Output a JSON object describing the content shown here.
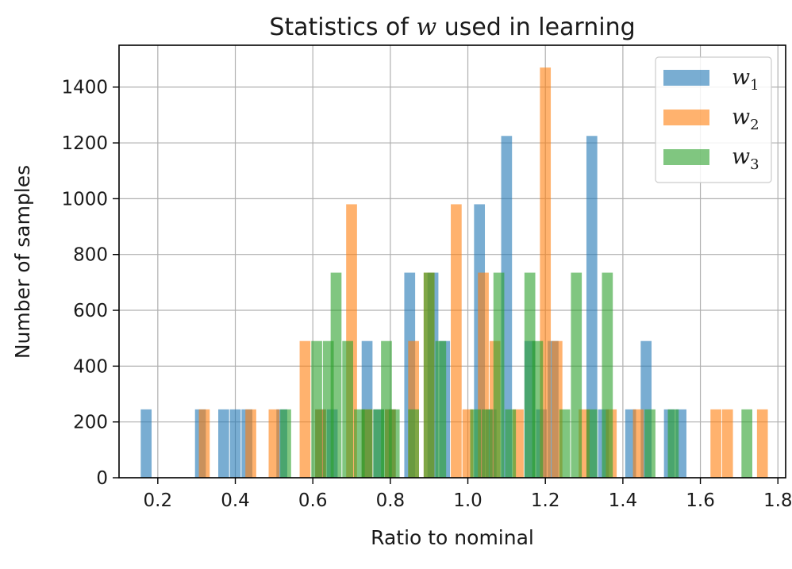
{
  "chart_data": {
    "type": "bar",
    "title_pre": "Statistics of ",
    "title_var": "w",
    "title_post": " used in learning",
    "xlabel": "Ratio to nominal",
    "ylabel": "Number of samples",
    "xlim": [
      0.1,
      1.82
    ],
    "ylim": [
      0,
      1550
    ],
    "xticks": [
      "0.2",
      "0.4",
      "0.6",
      "0.8",
      "1.0",
      "1.2",
      "1.4",
      "1.6",
      "1.8"
    ],
    "yticks": [
      "0",
      "200",
      "400",
      "600",
      "800",
      "1000",
      "1200",
      "1400"
    ],
    "grid": true,
    "legend_position": "top-right",
    "bar_width": 0.028,
    "series": [
      {
        "name": "w",
        "subscript": "1",
        "color": "#1f77b4",
        "bars": [
          {
            "x": 0.17,
            "y": 245
          },
          {
            "x": 0.31,
            "y": 245
          },
          {
            "x": 0.37,
            "y": 245
          },
          {
            "x": 0.4,
            "y": 245
          },
          {
            "x": 0.43,
            "y": 245
          },
          {
            "x": 0.52,
            "y": 245
          },
          {
            "x": 0.62,
            "y": 245
          },
          {
            "x": 0.65,
            "y": 245
          },
          {
            "x": 0.74,
            "y": 490
          },
          {
            "x": 0.77,
            "y": 245
          },
          {
            "x": 0.8,
            "y": 245
          },
          {
            "x": 0.85,
            "y": 735
          },
          {
            "x": 0.91,
            "y": 735
          },
          {
            "x": 0.94,
            "y": 490
          },
          {
            "x": 1.03,
            "y": 980
          },
          {
            "x": 1.06,
            "y": 245
          },
          {
            "x": 1.1,
            "y": 1225
          },
          {
            "x": 1.16,
            "y": 490
          },
          {
            "x": 1.19,
            "y": 245
          },
          {
            "x": 1.22,
            "y": 490
          },
          {
            "x": 1.32,
            "y": 1225
          },
          {
            "x": 1.35,
            "y": 245
          },
          {
            "x": 1.42,
            "y": 245
          },
          {
            "x": 1.46,
            "y": 490
          },
          {
            "x": 1.52,
            "y": 245
          },
          {
            "x": 1.55,
            "y": 245
          }
        ]
      },
      {
        "name": "w",
        "subscript": "2",
        "color": "#ff7f0e",
        "bars": [
          {
            "x": 0.32,
            "y": 245
          },
          {
            "x": 0.44,
            "y": 245
          },
          {
            "x": 0.5,
            "y": 245
          },
          {
            "x": 0.58,
            "y": 490
          },
          {
            "x": 0.62,
            "y": 245
          },
          {
            "x": 0.7,
            "y": 980
          },
          {
            "x": 0.74,
            "y": 245
          },
          {
            "x": 0.8,
            "y": 245
          },
          {
            "x": 0.86,
            "y": 490
          },
          {
            "x": 0.9,
            "y": 735
          },
          {
            "x": 0.97,
            "y": 980
          },
          {
            "x": 1.0,
            "y": 245
          },
          {
            "x": 1.04,
            "y": 735
          },
          {
            "x": 1.07,
            "y": 490
          },
          {
            "x": 1.13,
            "y": 245
          },
          {
            "x": 1.2,
            "y": 1470
          },
          {
            "x": 1.23,
            "y": 490
          },
          {
            "x": 1.3,
            "y": 245
          },
          {
            "x": 1.37,
            "y": 245
          },
          {
            "x": 1.44,
            "y": 245
          },
          {
            "x": 1.64,
            "y": 245
          },
          {
            "x": 1.67,
            "y": 245
          },
          {
            "x": 1.76,
            "y": 245
          }
        ]
      },
      {
        "name": "w",
        "subscript": "3",
        "color": "#2ca02c",
        "bars": [
          {
            "x": 0.53,
            "y": 245
          },
          {
            "x": 0.61,
            "y": 490
          },
          {
            "x": 0.64,
            "y": 490
          },
          {
            "x": 0.66,
            "y": 735
          },
          {
            "x": 0.69,
            "y": 490
          },
          {
            "x": 0.72,
            "y": 245
          },
          {
            "x": 0.74,
            "y": 245
          },
          {
            "x": 0.77,
            "y": 245
          },
          {
            "x": 0.79,
            "y": 490
          },
          {
            "x": 0.81,
            "y": 245
          },
          {
            "x": 0.86,
            "y": 245
          },
          {
            "x": 0.9,
            "y": 735
          },
          {
            "x": 0.93,
            "y": 490
          },
          {
            "x": 1.02,
            "y": 245
          },
          {
            "x": 1.05,
            "y": 245
          },
          {
            "x": 1.08,
            "y": 735
          },
          {
            "x": 1.11,
            "y": 245
          },
          {
            "x": 1.16,
            "y": 735
          },
          {
            "x": 1.18,
            "y": 490
          },
          {
            "x": 1.25,
            "y": 245
          },
          {
            "x": 1.28,
            "y": 735
          },
          {
            "x": 1.32,
            "y": 245
          },
          {
            "x": 1.36,
            "y": 735
          },
          {
            "x": 1.47,
            "y": 245
          },
          {
            "x": 1.53,
            "y": 245
          },
          {
            "x": 1.72,
            "y": 245
          }
        ]
      }
    ]
  }
}
